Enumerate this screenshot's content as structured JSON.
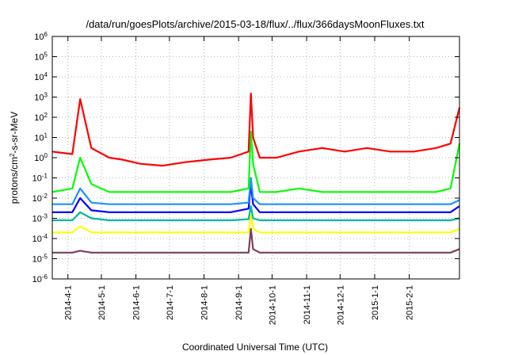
{
  "chart_data": {
    "type": "line",
    "title": "/data/run/goesPlots/archive/2015-03-18/flux/../flux/366daysMoonFluxes.txt",
    "xlabel": "Coordinated Universal Time (UTC)",
    "ylabel_base": "protons/cm",
    "ylabel_sup": "2",
    "ylabel_rest": "-s-sr-MeV",
    "y_scale": "log",
    "ylim_exp": [
      -6,
      6
    ],
    "xlim": [
      "2014-03-18",
      "2015-03-18"
    ],
    "grid": true,
    "x_ticks": [
      {
        "date": "2014-04-01",
        "label": "2014-4-1"
      },
      {
        "date": "2014-05-01",
        "label": "2014-5-1"
      },
      {
        "date": "2014-06-01",
        "label": "2014-6-1"
      },
      {
        "date": "2014-07-01",
        "label": "2014-7-1"
      },
      {
        "date": "2014-08-01",
        "label": "2014-8-1"
      },
      {
        "date": "2014-09-01",
        "label": "2014-9-1"
      },
      {
        "date": "2014-10-01",
        "label": "2014-10-1"
      },
      {
        "date": "2014-11-01",
        "label": "2014-11-1"
      },
      {
        "date": "2014-12-01",
        "label": "2014-12-1"
      },
      {
        "date": "2015-01-01",
        "label": "2015-1-1"
      },
      {
        "date": "2015-02-01",
        "label": "2015-2-1"
      }
    ],
    "y_ticks": [
      {
        "exp": -6,
        "base": "10",
        "sup": "-6"
      },
      {
        "exp": -5,
        "base": "10",
        "sup": "-5"
      },
      {
        "exp": -4,
        "base": "10",
        "sup": "-4"
      },
      {
        "exp": -3,
        "base": "10",
        "sup": "-3"
      },
      {
        "exp": -2,
        "base": "10",
        "sup": "-2"
      },
      {
        "exp": -1,
        "base": "10",
        "sup": "-1"
      },
      {
        "exp": 0,
        "base": "10",
        "sup": "0"
      },
      {
        "exp": 1,
        "base": "10",
        "sup": "1"
      },
      {
        "exp": 2,
        "base": "10",
        "sup": "2"
      },
      {
        "exp": 3,
        "base": "10",
        "sup": "3"
      },
      {
        "exp": 4,
        "base": "10",
        "sup": "4"
      },
      {
        "exp": 5,
        "base": "10",
        "sup": "5"
      },
      {
        "exp": 6,
        "base": "10",
        "sup": "6"
      }
    ],
    "series": [
      {
        "color": "#7a3f5e",
        "x": [
          "2014-03-18",
          "2014-04-05",
          "2014-04-12",
          "2014-04-22",
          "2014-05-08",
          "2014-05-20",
          "2014-06-05",
          "2014-06-25",
          "2014-07-15",
          "2014-08-05",
          "2014-08-25",
          "2014-09-10",
          "2014-09-12",
          "2014-09-14",
          "2014-09-20",
          "2014-10-05",
          "2014-10-25",
          "2014-11-15",
          "2014-12-05",
          "2014-12-25",
          "2015-01-15",
          "2015-02-05",
          "2015-02-25",
          "2015-03-10",
          "2015-03-18"
        ],
        "y": [
          2e-05,
          2e-05,
          2.5e-05,
          2e-05,
          2e-05,
          2e-05,
          2e-05,
          2e-05,
          2e-05,
          2e-05,
          2e-05,
          2e-05,
          0.0003,
          3e-05,
          2e-05,
          2e-05,
          2e-05,
          2e-05,
          2e-05,
          2e-05,
          2e-05,
          2e-05,
          2e-05,
          2e-05,
          3e-05
        ]
      },
      {
        "color": "#ffff00",
        "x": [
          "2014-03-18",
          "2014-04-05",
          "2014-04-12",
          "2014-04-22",
          "2014-05-08",
          "2014-05-20",
          "2014-06-05",
          "2014-06-25",
          "2014-07-15",
          "2014-08-05",
          "2014-08-25",
          "2014-09-10",
          "2014-09-12",
          "2014-09-14",
          "2014-09-20",
          "2014-10-05",
          "2014-10-25",
          "2014-11-15",
          "2014-12-05",
          "2014-12-25",
          "2015-01-15",
          "2015-02-05",
          "2015-02-25",
          "2015-03-10",
          "2015-03-18"
        ],
        "y": [
          0.0002,
          0.0002,
          0.0004,
          0.0002,
          0.0002,
          0.0002,
          0.0002,
          0.0002,
          0.0002,
          0.0002,
          0.0002,
          0.0002,
          0.0015,
          0.0003,
          0.0002,
          0.0002,
          0.0002,
          0.0002,
          0.0002,
          0.0002,
          0.0002,
          0.0002,
          0.0002,
          0.0002,
          0.0003
        ]
      },
      {
        "color": "#00b8a0",
        "x": [
          "2014-03-18",
          "2014-04-05",
          "2014-04-12",
          "2014-04-22",
          "2014-05-08",
          "2014-05-20",
          "2014-06-05",
          "2014-06-25",
          "2014-07-15",
          "2014-08-05",
          "2014-08-25",
          "2014-09-10",
          "2014-09-12",
          "2014-09-14",
          "2014-09-20",
          "2014-10-05",
          "2014-10-25",
          "2014-11-15",
          "2014-12-05",
          "2014-12-25",
          "2015-01-15",
          "2015-02-05",
          "2015-02-25",
          "2015-03-10",
          "2015-03-18"
        ],
        "y": [
          0.0008,
          0.0008,
          0.002,
          0.001,
          0.0008,
          0.0008,
          0.0008,
          0.0008,
          0.0008,
          0.0008,
          0.0008,
          0.0009,
          0.004,
          0.001,
          0.0008,
          0.0008,
          0.0008,
          0.0008,
          0.0008,
          0.0008,
          0.0008,
          0.0008,
          0.0008,
          0.0008,
          0.001
        ]
      },
      {
        "color": "#0000ff",
        "x": [
          "2014-03-18",
          "2014-04-05",
          "2014-04-12",
          "2014-04-22",
          "2014-05-08",
          "2014-05-20",
          "2014-06-05",
          "2014-06-25",
          "2014-07-15",
          "2014-08-05",
          "2014-08-25",
          "2014-09-10",
          "2014-09-12",
          "2014-09-14",
          "2014-09-20",
          "2014-10-05",
          "2014-10-25",
          "2014-11-15",
          "2014-12-05",
          "2014-12-25",
          "2015-01-15",
          "2015-02-05",
          "2015-02-25",
          "2015-03-10",
          "2015-03-18"
        ],
        "y": [
          0.002,
          0.002,
          0.01,
          0.0025,
          0.002,
          0.002,
          0.002,
          0.002,
          0.002,
          0.002,
          0.002,
          0.003,
          0.05,
          0.005,
          0.002,
          0.002,
          0.002,
          0.002,
          0.002,
          0.002,
          0.002,
          0.002,
          0.002,
          0.002,
          0.004
        ]
      },
      {
        "color": "#1e90ff",
        "x": [
          "2014-03-18",
          "2014-04-05",
          "2014-04-12",
          "2014-04-22",
          "2014-05-08",
          "2014-05-20",
          "2014-06-05",
          "2014-06-25",
          "2014-07-15",
          "2014-08-05",
          "2014-08-25",
          "2014-09-10",
          "2014-09-12",
          "2014-09-14",
          "2014-09-20",
          "2014-10-05",
          "2014-10-25",
          "2014-11-15",
          "2014-12-05",
          "2014-12-25",
          "2015-01-15",
          "2015-02-05",
          "2015-02-25",
          "2015-03-10",
          "2015-03-18"
        ],
        "y": [
          0.005,
          0.005,
          0.03,
          0.006,
          0.005,
          0.005,
          0.005,
          0.005,
          0.005,
          0.005,
          0.005,
          0.006,
          0.1,
          0.01,
          0.005,
          0.005,
          0.005,
          0.005,
          0.005,
          0.005,
          0.005,
          0.005,
          0.005,
          0.005,
          0.008
        ]
      },
      {
        "color": "#00ff00",
        "x": [
          "2014-03-18",
          "2014-04-05",
          "2014-04-12",
          "2014-04-22",
          "2014-05-08",
          "2014-05-20",
          "2014-06-05",
          "2014-06-25",
          "2014-07-15",
          "2014-08-05",
          "2014-08-25",
          "2014-09-10",
          "2014-09-12",
          "2014-09-14",
          "2014-09-20",
          "2014-10-05",
          "2014-10-25",
          "2014-11-15",
          "2014-12-05",
          "2014-12-25",
          "2015-01-15",
          "2015-02-05",
          "2015-02-25",
          "2015-03-10",
          "2015-03-18"
        ],
        "y": [
          0.02,
          0.03,
          1,
          0.05,
          0.02,
          0.02,
          0.02,
          0.02,
          0.02,
          0.02,
          0.02,
          0.03,
          20,
          0.5,
          0.02,
          0.02,
          0.03,
          0.02,
          0.02,
          0.02,
          0.02,
          0.02,
          0.02,
          0.03,
          5
        ]
      },
      {
        "color": "#ff0000",
        "x": [
          "2014-03-18",
          "2014-04-05",
          "2014-04-12",
          "2014-04-22",
          "2014-05-08",
          "2014-05-20",
          "2014-06-05",
          "2014-06-25",
          "2014-07-15",
          "2014-08-05",
          "2014-08-25",
          "2014-09-10",
          "2014-09-12",
          "2014-09-14",
          "2014-09-20",
          "2014-10-05",
          "2014-10-25",
          "2014-11-15",
          "2014-12-05",
          "2014-12-25",
          "2015-01-15",
          "2015-02-05",
          "2015-02-25",
          "2015-03-10",
          "2015-03-18"
        ],
        "y": [
          2,
          1.5,
          800,
          3,
          1,
          0.8,
          0.5,
          0.4,
          0.6,
          0.8,
          1,
          2,
          1500,
          10,
          1,
          1,
          2,
          3,
          2,
          3,
          2,
          2,
          3,
          5,
          300
        ]
      }
    ]
  }
}
